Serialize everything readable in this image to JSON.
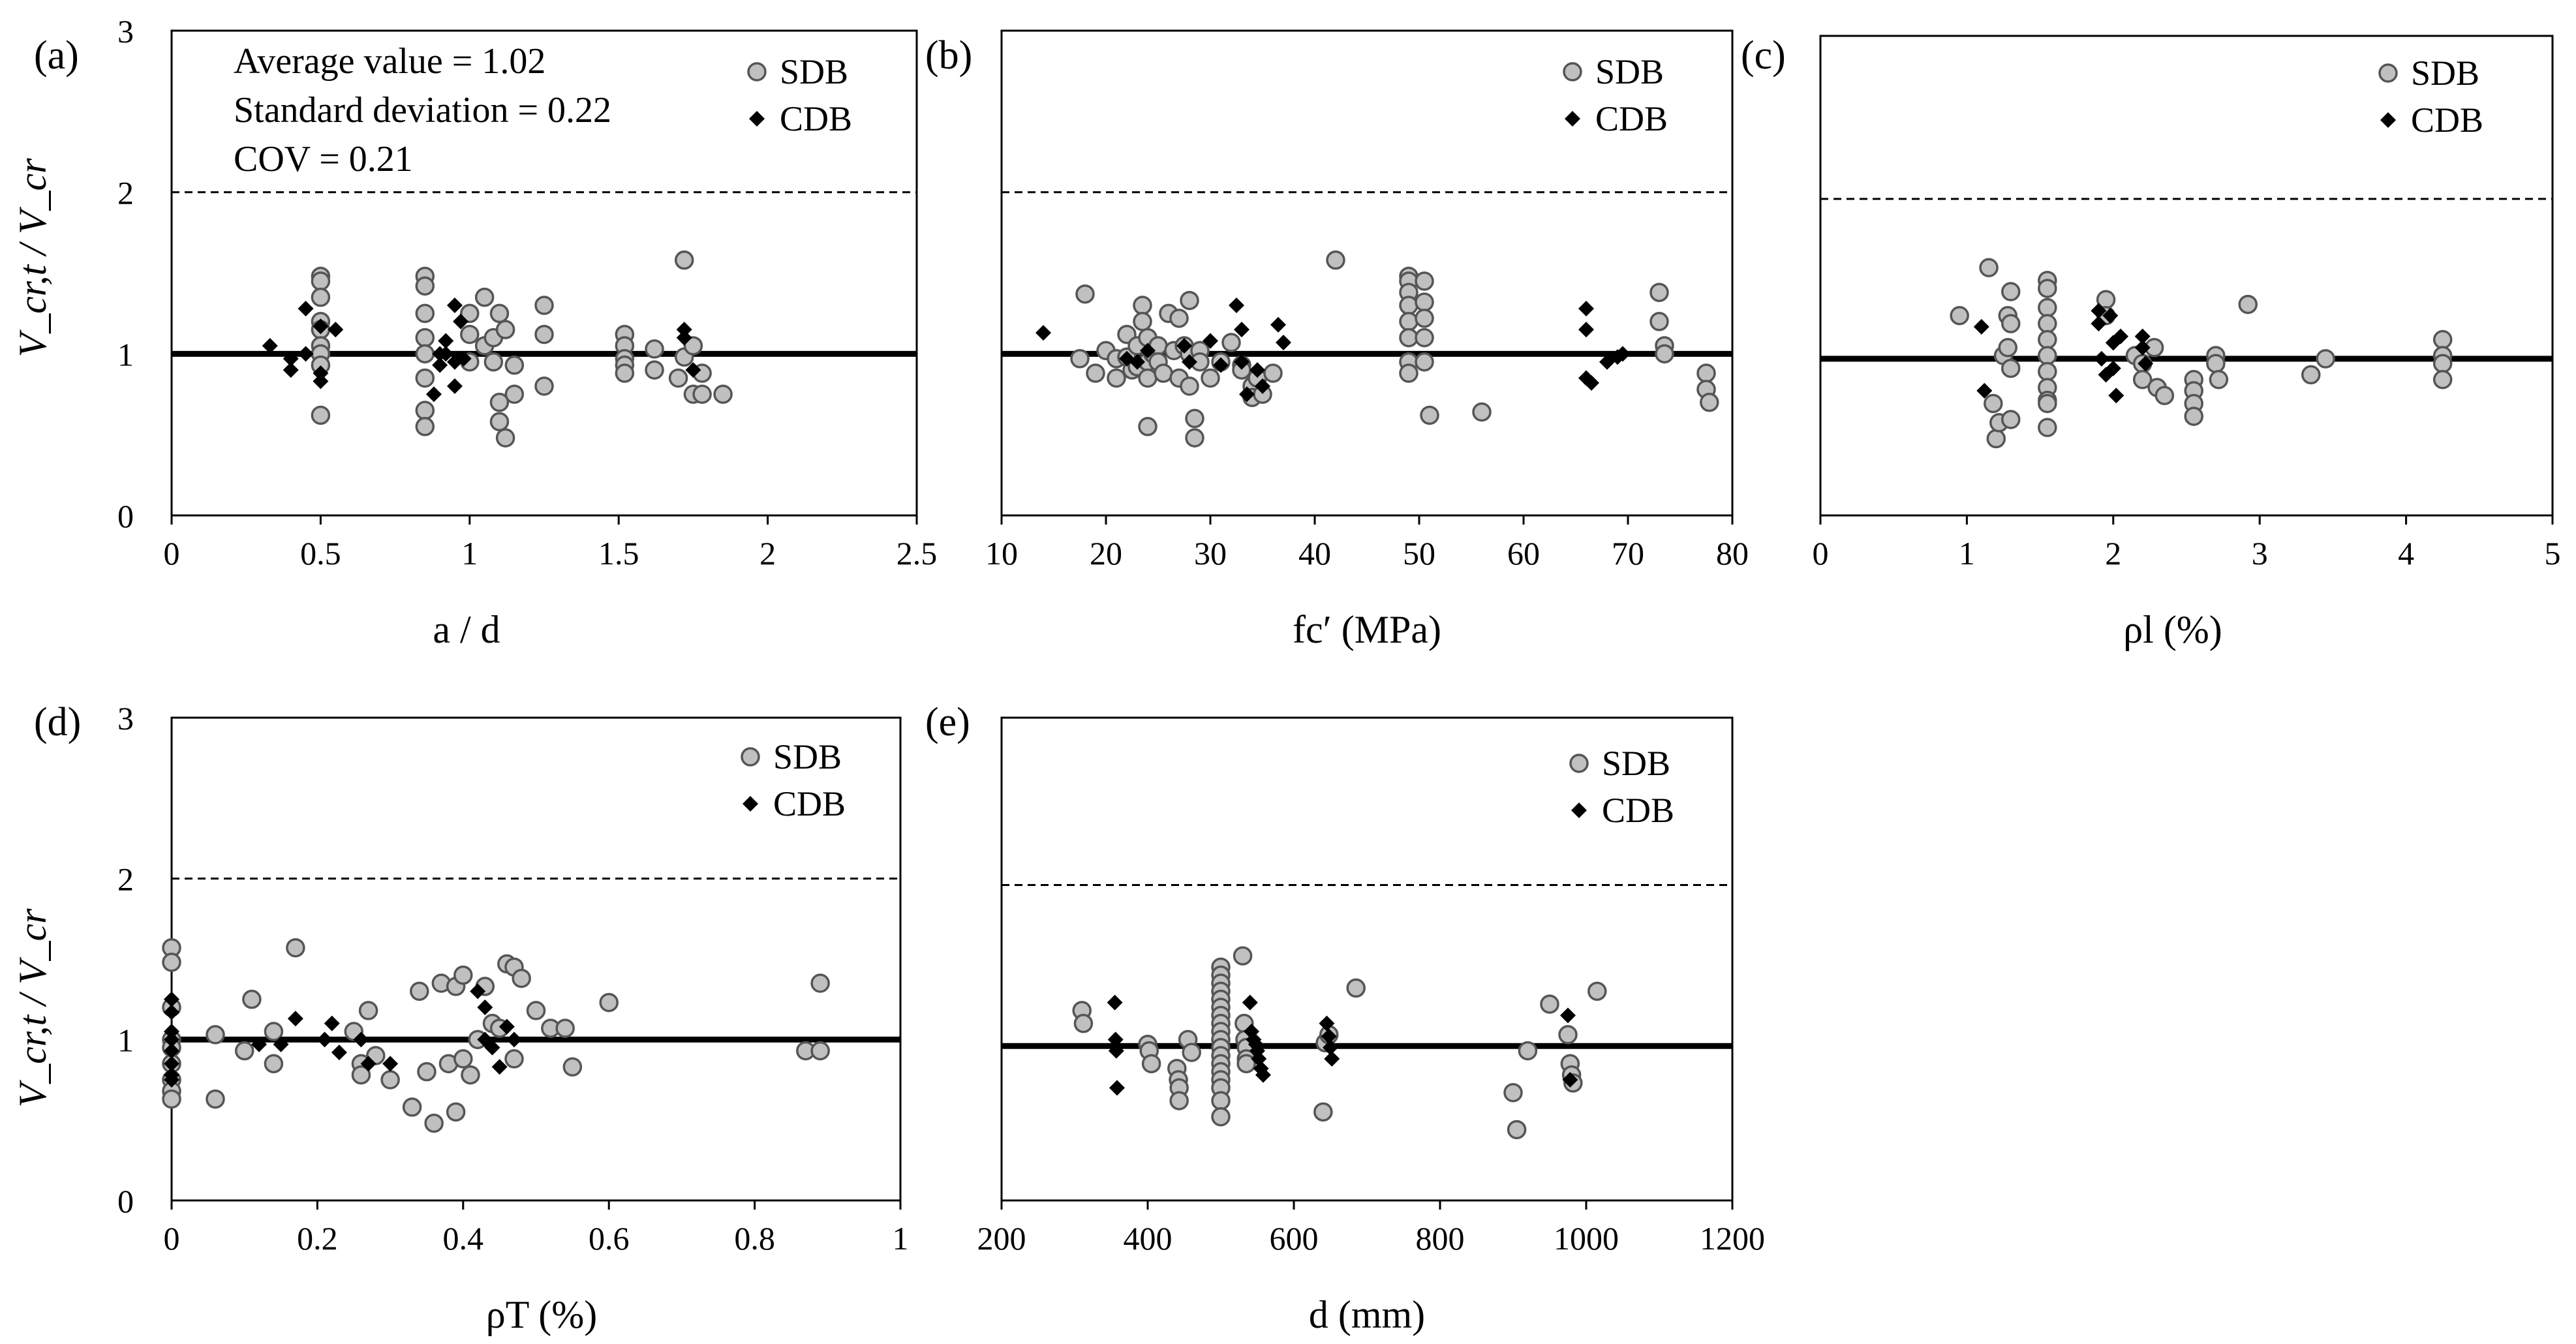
{
  "chart_data": [
    {
      "panel_label": "(a)",
      "type": "scatter",
      "xlabel": "a / d",
      "ylabel": "V_cr,t / V_cr",
      "xlim": [
        0,
        2.5
      ],
      "ylim": [
        0,
        3
      ],
      "xticks": [
        "0",
        "0.5",
        "1",
        "1.5",
        "2",
        "2.5"
      ],
      "yticks": [
        "0",
        "1",
        "2",
        "3"
      ],
      "mean_line": 1.0,
      "upper_line": 2.0,
      "stats": [
        "Average value = 1.02",
        "Standard deviation = 0.22",
        "COV = 0.21"
      ],
      "legend": [
        "SDB",
        "CDB"
      ],
      "series": [
        {
          "name": "SDB",
          "marker": "circle",
          "x": [
            0.5,
            0.5,
            0.5,
            0.5,
            0.5,
            0.5,
            0.5,
            0.5,
            0.5,
            0.85,
            0.85,
            0.85,
            0.85,
            0.85,
            0.85,
            0.85,
            0.85,
            1.0,
            1.0,
            1.0,
            1.05,
            1.05,
            1.08,
            1.08,
            1.1,
            1.1,
            1.1,
            1.12,
            1.12,
            1.15,
            1.15,
            1.25,
            1.25,
            1.25,
            1.52,
            1.52,
            1.52,
            1.52,
            1.52,
            1.62,
            1.62,
            1.7,
            1.72,
            1.72,
            1.75,
            1.75,
            1.78,
            1.78,
            1.85
          ],
          "y": [
            1.48,
            1.45,
            1.35,
            1.2,
            1.15,
            1.05,
            1.0,
            0.93,
            0.62,
            1.48,
            1.42,
            1.25,
            1.1,
            1.0,
            0.85,
            0.65,
            0.55,
            1.25,
            1.12,
            0.95,
            1.35,
            1.05,
            1.1,
            0.95,
            1.25,
            0.7,
            0.58,
            1.15,
            0.48,
            0.93,
            0.75,
            1.3,
            1.12,
            0.8,
            1.12,
            1.05,
            0.97,
            0.93,
            0.88,
            1.03,
            0.9,
            0.85,
            1.58,
            0.98,
            1.05,
            0.75,
            0.88,
            0.75,
            0.75
          ]
        },
        {
          "name": "CDB",
          "marker": "diamond",
          "x": [
            0.33,
            0.4,
            0.4,
            0.45,
            0.45,
            0.5,
            0.5,
            0.5,
            0.55,
            0.88,
            0.9,
            0.9,
            0.92,
            0.92,
            0.95,
            0.95,
            0.95,
            0.97,
            0.98,
            1.72,
            1.72,
            1.75
          ],
          "y": [
            1.05,
            0.97,
            0.9,
            1.0,
            1.28,
            1.17,
            0.88,
            0.83,
            1.15,
            0.75,
            1.0,
            0.93,
            1.0,
            1.08,
            1.3,
            0.8,
            0.95,
            1.2,
            0.97,
            1.15,
            1.1,
            0.9
          ]
        }
      ]
    },
    {
      "panel_label": "(b)",
      "type": "scatter",
      "xlabel": "fc′ (MPa)",
      "ylabel": "",
      "xlim": [
        10,
        80
      ],
      "ylim": [
        0,
        3
      ],
      "xticks": [
        "10",
        "20",
        "30",
        "40",
        "50",
        "60",
        "70",
        "80"
      ],
      "yticks": [],
      "mean_line": 1.0,
      "upper_line": 2.0,
      "legend": [
        "SDB",
        "CDB"
      ],
      "series": [
        {
          "name": "SDB",
          "marker": "circle",
          "x": [
            17.5,
            18,
            19,
            20,
            21,
            21,
            22,
            22,
            22.5,
            23,
            23,
            23.5,
            23.5,
            24,
            24,
            24,
            24,
            24.5,
            25,
            25,
            25.5,
            26,
            26.5,
            27,
            27,
            27.5,
            28,
            28,
            28,
            28.5,
            28.5,
            29,
            29,
            30,
            31,
            32,
            33,
            33,
            34,
            34,
            34.5,
            35,
            36,
            42,
            49,
            49,
            49,
            49,
            49,
            49,
            49,
            49,
            50.5,
            50.5,
            50.5,
            50.5,
            50.5,
            51,
            56,
            73,
            73,
            73.5,
            73.5,
            77.5,
            77.5,
            77.8
          ],
          "y": [
            0.97,
            1.37,
            0.88,
            1.02,
            0.97,
            0.85,
            1.12,
            0.98,
            0.9,
            1.05,
            0.92,
            1.3,
            1.2,
            1.1,
            0.95,
            0.85,
            0.55,
            1.0,
            1.05,
            0.95,
            0.88,
            1.25,
            1.02,
            1.22,
            0.85,
            1.05,
            1.33,
            1.0,
            0.8,
            0.6,
            0.48,
            1.02,
            0.95,
            0.85,
            0.95,
            1.07,
            0.93,
            0.9,
            0.8,
            0.73,
            0.85,
            0.75,
            0.88,
            1.58,
            1.48,
            1.45,
            1.38,
            1.3,
            1.2,
            1.1,
            0.95,
            0.88,
            1.45,
            1.32,
            1.22,
            1.1,
            0.95,
            0.62,
            0.64,
            1.38,
            1.2,
            1.05,
            1.0,
            0.88,
            0.78,
            0.7
          ]
        },
        {
          "name": "CDB",
          "marker": "diamond",
          "x": [
            14,
            22,
            23,
            24,
            27.5,
            28,
            30,
            31,
            32.5,
            33,
            33,
            33.5,
            34.5,
            35,
            36.5,
            37,
            66,
            66,
            66,
            66.5,
            68,
            69,
            69.5
          ],
          "y": [
            1.13,
            0.97,
            0.95,
            1.02,
            1.05,
            0.95,
            1.08,
            0.93,
            1.3,
            1.15,
            0.95,
            0.75,
            0.9,
            0.8,
            1.18,
            1.07,
            1.28,
            1.15,
            0.85,
            0.82,
            0.95,
            0.98,
            1.0
          ]
        }
      ]
    },
    {
      "panel_label": "(c)",
      "type": "scatter",
      "xlabel": "ρl (%)",
      "ylabel": "",
      "xlim": [
        0,
        5
      ],
      "ylim": [
        0,
        3
      ],
      "xticks": [
        "0",
        "1",
        "2",
        "3",
        "4",
        "5"
      ],
      "yticks": [],
      "mean_line": 0.98,
      "upper_line": 1.98,
      "legend": [
        "SDB",
        "CDB"
      ],
      "series": [
        {
          "name": "SDB",
          "marker": "circle",
          "x": [
            0.95,
            1.15,
            1.18,
            1.2,
            1.22,
            1.25,
            1.28,
            1.28,
            1.3,
            1.3,
            1.3,
            1.3,
            1.55,
            1.55,
            1.55,
            1.55,
            1.55,
            1.55,
            1.55,
            1.55,
            1.55,
            1.55,
            1.55,
            1.95,
            1.95,
            2.15,
            2.2,
            2.2,
            2.28,
            2.3,
            2.35,
            2.55,
            2.55,
            2.55,
            2.55,
            2.7,
            2.7,
            2.72,
            2.92,
            3.35,
            3.45,
            4.25,
            4.25,
            4.25,
            4.25
          ],
          "y": [
            1.25,
            1.55,
            0.7,
            0.48,
            0.58,
            1.0,
            1.25,
            1.05,
            1.4,
            1.2,
            0.92,
            0.6,
            1.47,
            1.42,
            1.3,
            1.2,
            1.1,
            1.0,
            0.9,
            0.8,
            0.72,
            0.7,
            0.55,
            1.35,
            1.25,
            1.0,
            0.95,
            0.85,
            1.05,
            0.8,
            0.75,
            0.85,
            0.78,
            0.7,
            0.62,
            1.0,
            0.95,
            0.85,
            1.32,
            0.88,
            0.98,
            1.1,
            1.0,
            0.95,
            0.85
          ]
        },
        {
          "name": "CDB",
          "marker": "diamond",
          "x": [
            1.1,
            1.12,
            1.9,
            1.9,
            1.92,
            1.95,
            1.98,
            2.0,
            2.0,
            2.02,
            2.05,
            2.2,
            2.2,
            2.22
          ],
          "y": [
            1.18,
            0.78,
            1.28,
            1.2,
            0.98,
            0.88,
            1.25,
            1.08,
            0.92,
            0.75,
            1.12,
            1.12,
            1.05,
            0.95
          ]
        }
      ]
    },
    {
      "panel_label": "(d)",
      "type": "scatter",
      "xlabel": "ρT (%)",
      "ylabel": "V_cr,t / V_cr",
      "xlim": [
        0,
        1
      ],
      "ylim": [
        0,
        3
      ],
      "xticks": [
        "0",
        "0.2",
        "0.4",
        "0.6",
        "0.8",
        "1"
      ],
      "yticks": [
        "0",
        "1",
        "2",
        "3"
      ],
      "mean_line": 1.0,
      "upper_line": 2.0,
      "legend": [
        "SDB",
        "CDB"
      ],
      "series": [
        {
          "name": "SDB",
          "marker": "circle",
          "x": [
            0,
            0,
            0,
            0,
            0,
            0,
            0,
            0,
            0,
            0.06,
            0.06,
            0.1,
            0.11,
            0.14,
            0.14,
            0.17,
            0.25,
            0.26,
            0.26,
            0.27,
            0.28,
            0.3,
            0.33,
            0.34,
            0.35,
            0.36,
            0.37,
            0.38,
            0.39,
            0.39,
            0.4,
            0.4,
            0.41,
            0.42,
            0.43,
            0.44,
            0.45,
            0.46,
            0.47,
            0.47,
            0.48,
            0.5,
            0.52,
            0.54,
            0.55,
            0.6,
            0.87,
            0.89,
            0.89
          ],
          "y": [
            1.57,
            1.48,
            1.2,
            1.0,
            0.95,
            0.85,
            0.75,
            0.68,
            0.63,
            1.03,
            0.63,
            0.93,
            1.25,
            1.05,
            0.85,
            1.57,
            1.05,
            0.85,
            0.78,
            1.18,
            0.9,
            0.75,
            0.58,
            1.3,
            0.8,
            0.48,
            1.35,
            0.85,
            1.33,
            0.55,
            1.4,
            0.88,
            0.78,
            1.0,
            1.33,
            1.1,
            1.07,
            1.47,
            1.45,
            0.88,
            1.38,
            1.18,
            1.07,
            1.07,
            0.83,
            1.23,
            0.93,
            1.35,
            0.93
          ]
        },
        {
          "name": "CDB",
          "marker": "diamond",
          "x": [
            0,
            0,
            0,
            0,
            0,
            0,
            0,
            0,
            0.12,
            0.15,
            0.17,
            0.21,
            0.22,
            0.23,
            0.26,
            0.27,
            0.3,
            0.42,
            0.43,
            0.43,
            0.44,
            0.45,
            0.46,
            0.47
          ],
          "y": [
            1.25,
            1.17,
            1.05,
            1.0,
            0.93,
            0.85,
            0.78,
            0.75,
            0.97,
            0.97,
            1.13,
            1.0,
            1.1,
            0.92,
            1.0,
            0.85,
            0.85,
            1.3,
            1.2,
            1.0,
            0.95,
            0.83,
            1.08,
            1.0
          ]
        }
      ]
    },
    {
      "panel_label": "(e)",
      "type": "scatter",
      "xlabel": "d (mm)",
      "ylabel": "",
      "xlim": [
        200,
        1200
      ],
      "ylim": [
        0,
        3
      ],
      "xticks": [
        "200",
        "400",
        "600",
        "800",
        "1000",
        "1200"
      ],
      "yticks": [],
      "mean_line": 0.96,
      "upper_line": 1.96,
      "legend": [
        "SDB",
        "CDB"
      ],
      "series": [
        {
          "name": "SDB",
          "marker": "circle",
          "x": [
            310,
            312,
            400,
            402,
            405,
            440,
            442,
            443,
            443,
            455,
            460,
            500,
            500,
            500,
            500,
            500,
            500,
            500,
            500,
            500,
            500,
            500,
            500,
            500,
            500,
            500,
            500,
            500,
            500,
            530,
            532,
            533,
            535,
            535,
            535,
            640,
            643,
            648,
            685,
            900,
            905,
            920,
            950,
            975,
            978,
            980,
            982,
            1015
          ],
          "y": [
            1.18,
            1.1,
            0.97,
            0.93,
            0.85,
            0.82,
            0.75,
            0.7,
            0.62,
            1.0,
            0.92,
            1.45,
            1.4,
            1.35,
            1.3,
            1.25,
            1.2,
            1.15,
            1.1,
            1.05,
            1.0,
            0.95,
            0.9,
            0.85,
            0.8,
            0.75,
            0.7,
            0.62,
            0.52,
            1.52,
            1.1,
            1.0,
            0.95,
            0.88,
            0.85,
            0.55,
            0.98,
            1.03,
            1.32,
            0.67,
            0.44,
            0.93,
            1.22,
            1.03,
            0.85,
            0.78,
            0.73,
            1.3
          ]
        },
        {
          "name": "CDB",
          "marker": "diamond",
          "x": [
            355,
            356,
            357,
            358,
            540,
            542,
            545,
            548,
            550,
            552,
            555,
            558,
            645,
            648,
            650,
            652,
            975,
            978
          ],
          "y": [
            1.23,
            1.0,
            0.93,
            0.7,
            1.23,
            1.05,
            1.0,
            0.97,
            0.93,
            0.88,
            0.82,
            0.78,
            1.1,
            1.02,
            0.95,
            0.88,
            1.15,
            0.75
          ]
        }
      ]
    }
  ]
}
